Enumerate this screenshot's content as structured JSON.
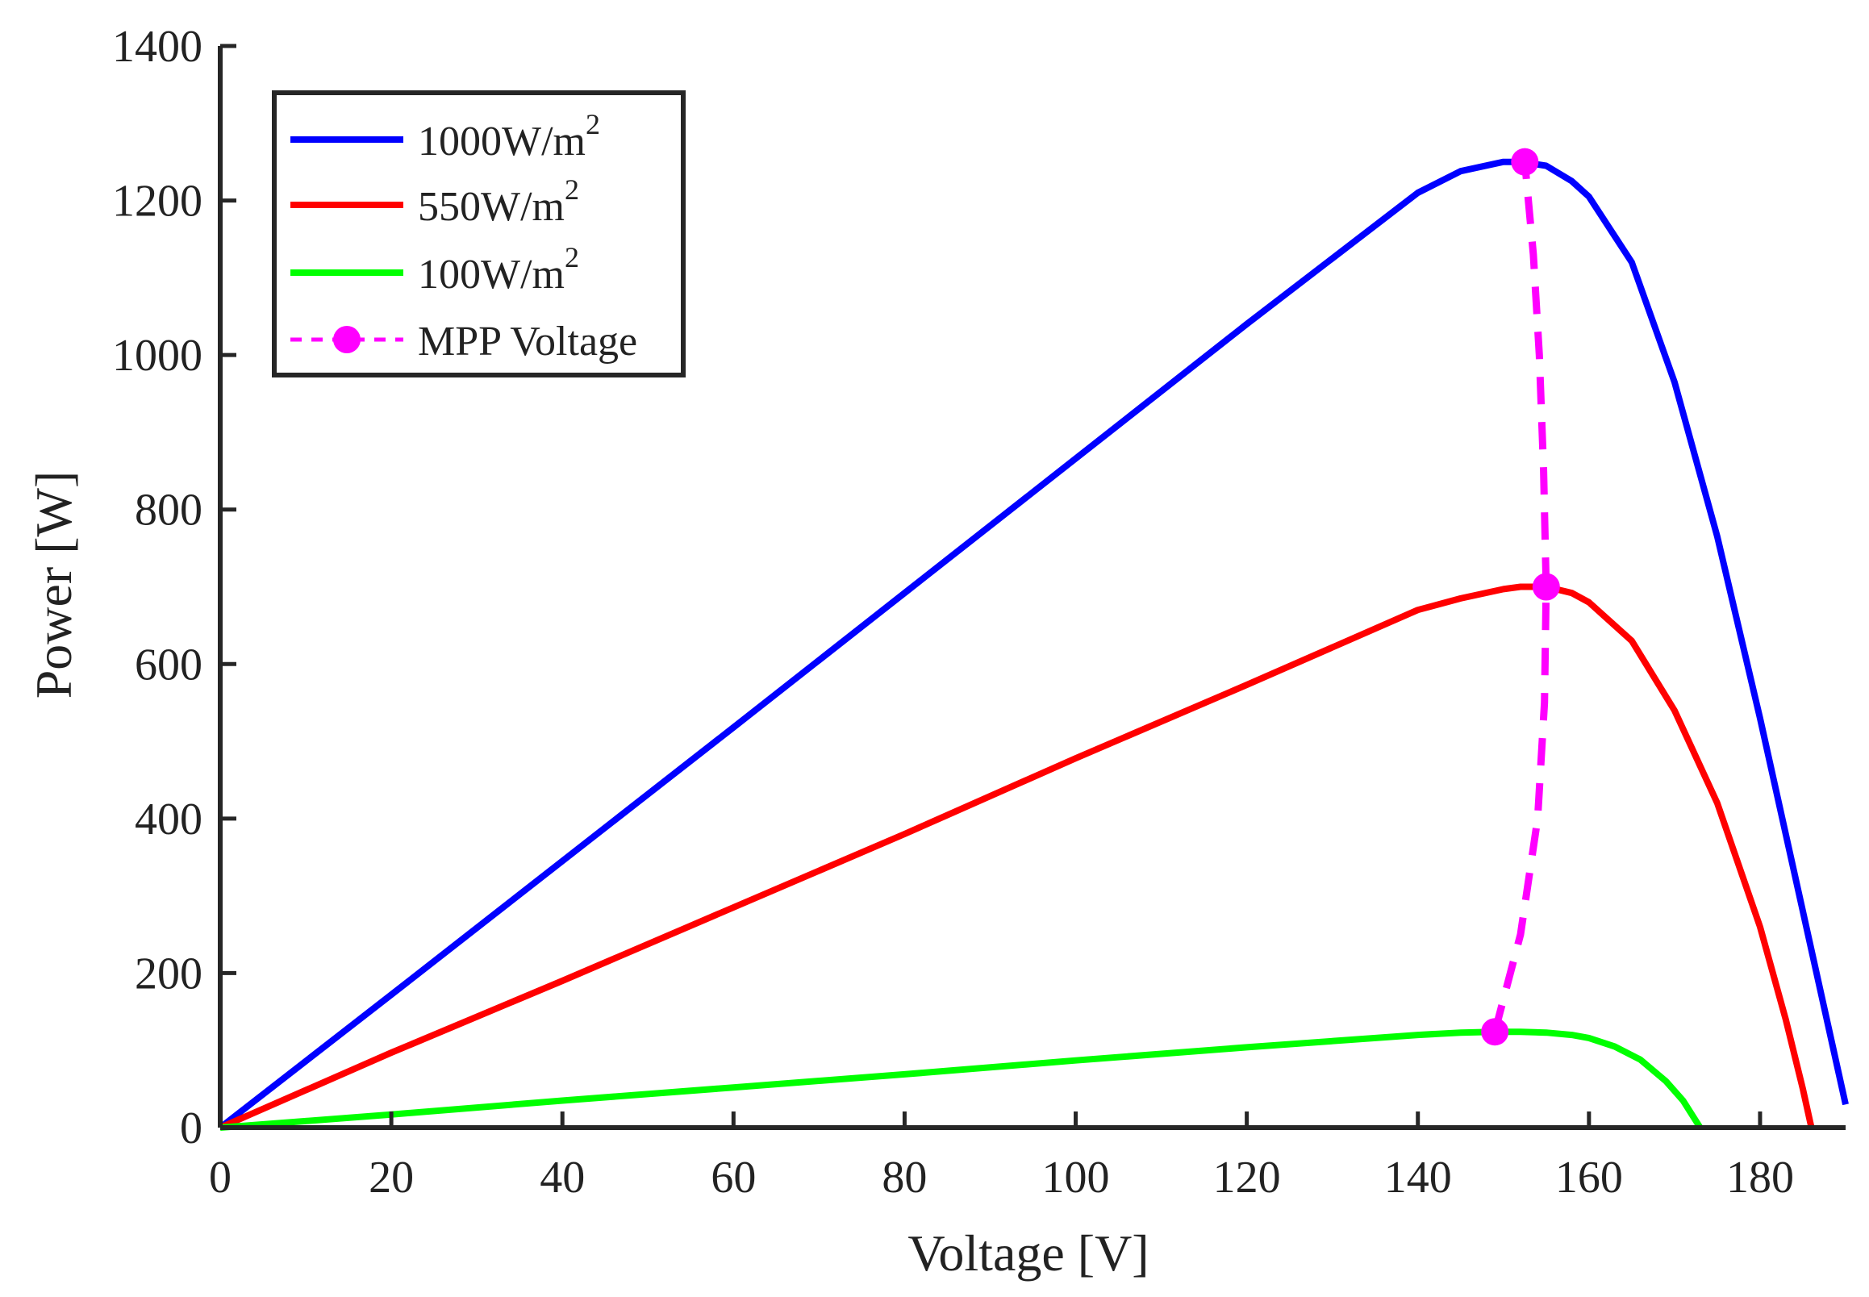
{
  "chart_data": {
    "type": "line",
    "title": "",
    "xlabel": "Voltage [V]",
    "ylabel": "Power [W]",
    "xlim": [
      0,
      190
    ],
    "ylim": [
      0,
      1400
    ],
    "xticks": [
      0,
      20,
      40,
      60,
      80,
      100,
      120,
      140,
      160,
      180
    ],
    "yticks": [
      0,
      200,
      400,
      600,
      800,
      1000,
      1200,
      1400
    ],
    "grid": false,
    "legend_position": "top-left",
    "series": [
      {
        "name": "1000W/m2",
        "label_base": "1000W/m",
        "label_sup": "2",
        "color": "#0000ff",
        "style": "solid",
        "x": [
          0,
          20,
          40,
          60,
          80,
          100,
          120,
          140,
          145,
          150,
          152,
          155,
          158,
          160,
          165,
          170,
          175,
          180,
          185,
          188,
          190
        ],
        "y": [
          0,
          172,
          345,
          518,
          692,
          866,
          1040,
          1210,
          1238,
          1250,
          1250,
          1245,
          1225,
          1205,
          1120,
          965,
          765,
          530,
          280,
          130,
          30
        ]
      },
      {
        "name": "550W/m2",
        "label_base": "550W/m",
        "label_sup": "2",
        "color": "#ff0000",
        "style": "solid",
        "x": [
          0,
          20,
          40,
          60,
          80,
          100,
          120,
          140,
          145,
          150,
          152,
          155,
          158,
          160,
          165,
          170,
          175,
          180,
          183,
          185,
          186
        ],
        "y": [
          0,
          97,
          190,
          285,
          380,
          478,
          573,
          670,
          685,
          697,
          700,
          700,
          692,
          680,
          630,
          540,
          420,
          260,
          140,
          50,
          0
        ]
      },
      {
        "name": "100W/m2",
        "label_base": "100W/m",
        "label_sup": "2",
        "color": "#00ff00",
        "style": "solid",
        "x": [
          0,
          20,
          40,
          60,
          80,
          100,
          120,
          140,
          145,
          149,
          152,
          155,
          158,
          160,
          163,
          166,
          169,
          171,
          173
        ],
        "y": [
          0,
          17,
          35,
          52,
          69,
          87,
          104,
          120,
          123,
          124,
          124,
          123,
          120,
          116,
          105,
          88,
          60,
          35,
          0
        ]
      },
      {
        "name": "MPP Voltage",
        "color": "#ff00ff",
        "style": "dashed",
        "markers": true,
        "x": [
          149,
          152,
          154,
          154.8,
          155,
          154.7,
          154.2,
          153.5,
          152.5
        ],
        "y": [
          124,
          250,
          400,
          550,
          700,
          850,
          1000,
          1130,
          1250
        ],
        "marker_points": [
          {
            "x": 149,
            "y": 124
          },
          {
            "x": 155,
            "y": 700
          },
          {
            "x": 152.5,
            "y": 1250
          }
        ]
      }
    ]
  }
}
